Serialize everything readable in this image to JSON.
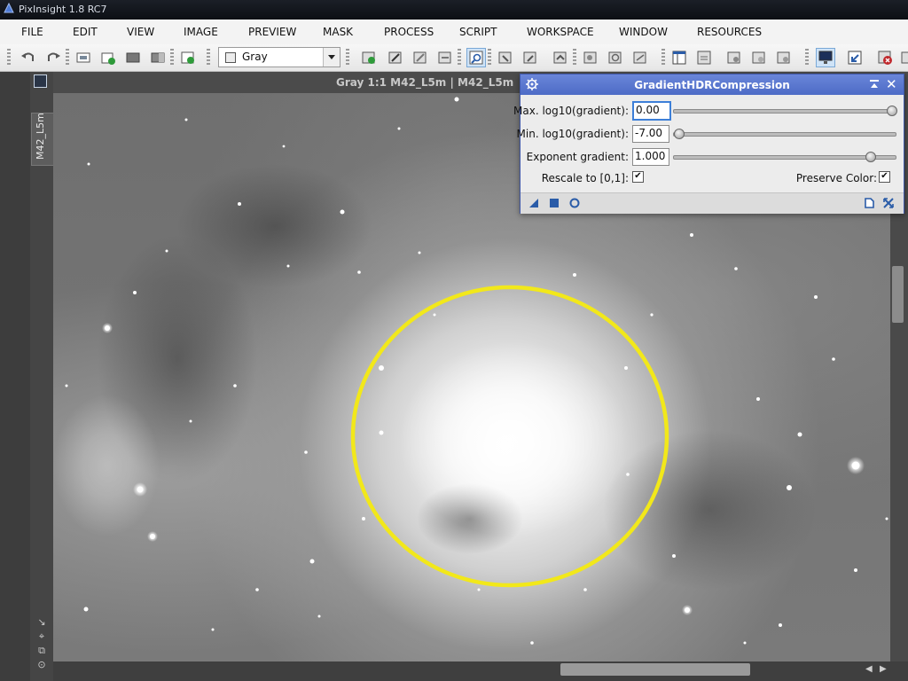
{
  "app": {
    "window_title": "PixInsight 1.8 RC7"
  },
  "menu": {
    "items": [
      "FILE",
      "EDIT",
      "VIEW",
      "IMAGE",
      "PREVIEW",
      "MASK",
      "PROCESS",
      "SCRIPT",
      "WORKSPACE",
      "WINDOW",
      "RESOURCES"
    ]
  },
  "toolbar": {
    "colorspace_select": "Gray"
  },
  "view": {
    "tab_label": "M42_L5m",
    "window_title": "Gray 1:1 M42_L5m | M42_L5m"
  },
  "dialog": {
    "title": "GradientHDRCompression",
    "max_label": "Max. log10(gradient):",
    "max_value": "0.00",
    "max_fraction": 1.0,
    "min_label": "Min. log10(gradient):",
    "min_value": "-7.00",
    "min_fraction": 0.0,
    "exp_label": "Exponent gradient:",
    "exp_value": "1.000",
    "exp_fraction": 0.9,
    "rescale_label": "Rescale to [0,1]:",
    "rescale_checked": true,
    "preserve_label": "Preserve Color:",
    "preserve_checked": true
  },
  "colors": {
    "dialog_title_bg": "#5a77d0",
    "highlight_circle": "#f2e81a"
  }
}
